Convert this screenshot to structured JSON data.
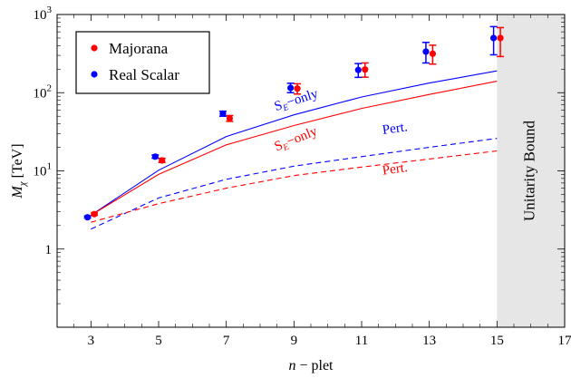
{
  "chart_data": {
    "type": "scatter",
    "title": "",
    "xlabel_italic": "n",
    "xlabel_rest": " − plet",
    "ylabel_italic": "M",
    "ylabel_sub": "χ",
    "ylabel_unit": "[TeV]",
    "xlim": [
      2,
      17
    ],
    "ylim": [
      0.1,
      1000
    ],
    "y_scale": "log",
    "x_ticks": [
      3,
      5,
      7,
      9,
      11,
      13,
      15,
      17
    ],
    "y_ticks": [
      {
        "value": 1,
        "label": "1"
      },
      {
        "value": 10,
        "label": "10",
        "sup": "1"
      },
      {
        "value": 100,
        "label": "10",
        "sup": "2"
      },
      {
        "value": 1000,
        "label": "10",
        "sup": "3"
      }
    ],
    "legend": {
      "position": "top-left",
      "entries": [
        {
          "label": "Majorana",
          "color": "#ff0000"
        },
        {
          "label": "Real Scalar",
          "color": "#0000ff"
        }
      ]
    },
    "shaded_region": {
      "x_from": 15,
      "x_to": 17,
      "label": "Unitarity Bound",
      "color": "#e6e6e6"
    },
    "series": [
      {
        "name": "Majorana",
        "kind": "points",
        "color": "#ff0000",
        "points": [
          {
            "x": 3,
            "y": 2.8,
            "ylo": 2.7,
            "yhi": 2.9
          },
          {
            "x": 5,
            "y": 13.6,
            "ylo": 12.8,
            "yhi": 14.5
          },
          {
            "x": 7,
            "y": 47,
            "ylo": 43,
            "yhi": 51
          },
          {
            "x": 9,
            "y": 113,
            "ylo": 96,
            "yhi": 130
          },
          {
            "x": 11,
            "y": 198,
            "ylo": 158,
            "yhi": 240
          },
          {
            "x": 13,
            "y": 315,
            "ylo": 232,
            "yhi": 405
          },
          {
            "x": 15,
            "y": 500,
            "ylo": 290,
            "yhi": 680
          }
        ]
      },
      {
        "name": "Real Scalar",
        "kind": "points",
        "color": "#0000ff",
        "points": [
          {
            "x": 3,
            "y": 2.55,
            "ylo": 2.5,
            "yhi": 2.65
          },
          {
            "x": 5,
            "y": 15.2,
            "ylo": 14.5,
            "yhi": 16.0
          },
          {
            "x": 7,
            "y": 54,
            "ylo": 50,
            "yhi": 58
          },
          {
            "x": 9,
            "y": 115,
            "ylo": 100,
            "yhi": 132
          },
          {
            "x": 11,
            "y": 195,
            "ylo": 157,
            "yhi": 236
          },
          {
            "x": 13,
            "y": 335,
            "ylo": 240,
            "yhi": 440
          },
          {
            "x": 15,
            "y": 500,
            "ylo": 305,
            "yhi": 700
          }
        ]
      },
      {
        "name": "",
        "kind": "line",
        "color": "#0000ff",
        "dash": false,
        "x": [
          3,
          5,
          7,
          9,
          11,
          13,
          15
        ],
        "y": [
          2.7,
          10.2,
          27.5,
          52,
          88,
          133,
          190
        ]
      },
      {
        "name": "",
        "kind": "line",
        "color": "#ff0000",
        "dash": false,
        "x": [
          3,
          5,
          7,
          9,
          11,
          13,
          15
        ],
        "y": [
          2.7,
          9.0,
          21.5,
          38,
          63,
          95,
          140
        ]
      },
      {
        "name": "",
        "kind": "line",
        "color": "#0000ff",
        "dash": true,
        "x": [
          3,
          5,
          7,
          9,
          11,
          13,
          15
        ],
        "y": [
          1.8,
          4.5,
          7.8,
          11.5,
          15.2,
          20,
          26
        ]
      },
      {
        "name": "",
        "kind": "line",
        "color": "#ff0000",
        "dash": true,
        "x": [
          3,
          5,
          7,
          9,
          11,
          13,
          15
        ],
        "y": [
          2.2,
          3.8,
          6.0,
          8.7,
          11.2,
          14.2,
          18
        ]
      }
    ],
    "annotations": [
      {
        "id": "se-blue",
        "main": "S",
        "sub": "E",
        "rest": "−only",
        "color": "#0000ff",
        "x": 9.1,
        "y": 72,
        "rotate": -18
      },
      {
        "id": "se-red",
        "main": "S",
        "sub": "E",
        "rest": "−only",
        "color": "#ff0000",
        "x": 9.1,
        "y": 23,
        "rotate": -22
      },
      {
        "id": "pert-blue",
        "text": "Pert.",
        "color": "#0000ff",
        "x": 12.0,
        "y": 31,
        "rotate": -8
      },
      {
        "id": "pert-red",
        "text": "Pert.",
        "color": "#ff0000",
        "x": 12.0,
        "y": 9.4,
        "rotate": -8
      }
    ]
  }
}
